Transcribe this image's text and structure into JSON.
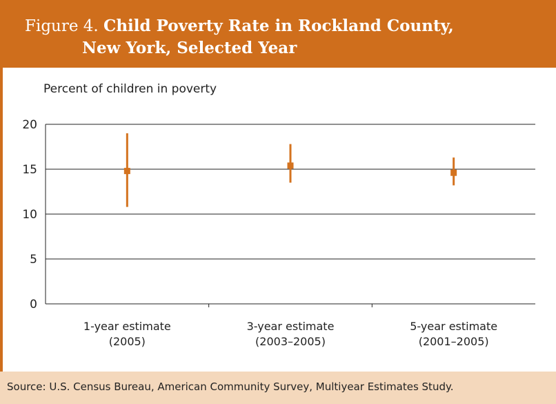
{
  "header": {
    "figure_label": "Figure 4.",
    "title_line1": "Child Poverty Rate in Rockland County,",
    "title_line2": "New York, Selected Year"
  },
  "colors": {
    "accent": "#cf6e1c",
    "source_bg": "#f4d8bc",
    "marker": "#d4731f"
  },
  "chart_data": {
    "type": "scatter",
    "title": "Child Poverty Rate in Rockland County, New York, Selected Year",
    "ylabel": "Percent of children in poverty",
    "xlabel": "",
    "ylim": [
      0,
      20
    ],
    "yticks": [
      0,
      5,
      10,
      15,
      20
    ],
    "grid": true,
    "categories": [
      [
        "1-year estimate",
        "(2005)"
      ],
      [
        "3-year estimate",
        "(2003–2005)"
      ],
      [
        "5-year estimate",
        "(2001–2005)"
      ]
    ],
    "series": [
      {
        "values": [
          14.8,
          15.4,
          14.6
        ],
        "lower": [
          10.8,
          13.5,
          13.2
        ],
        "upper": [
          19.0,
          17.8,
          16.3
        ]
      }
    ]
  },
  "source": {
    "text": "Source: U.S. Census Bureau, American Community Survey, Multiyear Estimates Study."
  }
}
